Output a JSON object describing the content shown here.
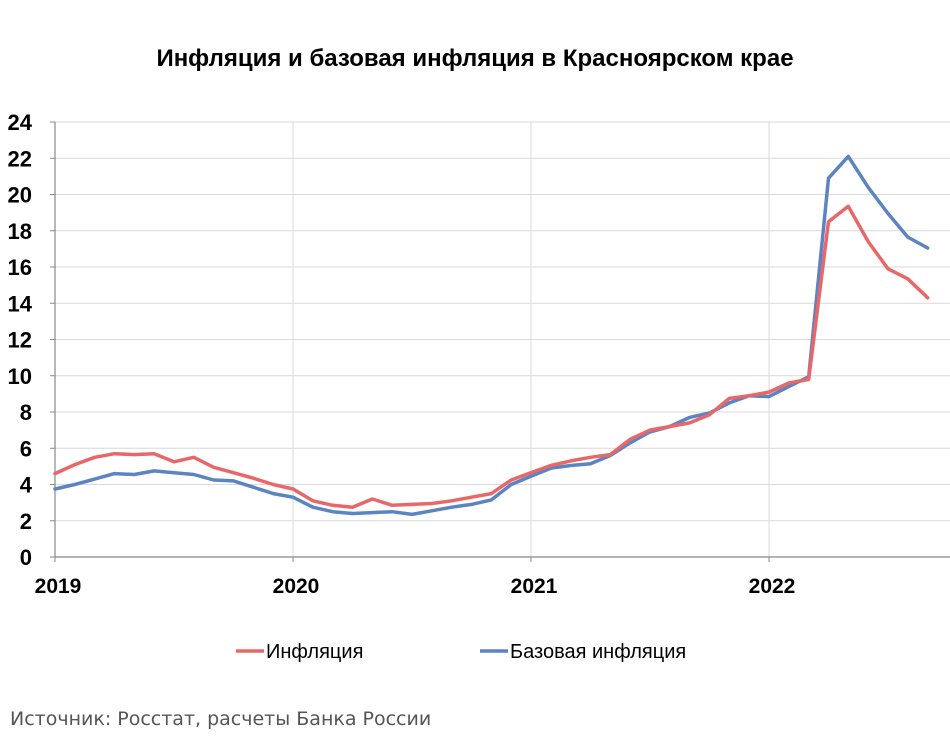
{
  "chart_data": {
    "type": "line",
    "title": "Инфляция и базовая инфляция в Красноярском крае",
    "xlabel": "",
    "ylabel": "",
    "ylim": [
      0,
      24
    ],
    "y_ticks": [
      0,
      2,
      4,
      6,
      8,
      10,
      12,
      14,
      16,
      18,
      20,
      22,
      24
    ],
    "x_tick_labels": [
      "2019",
      "2020",
      "2021",
      "2022"
    ],
    "grid": true,
    "legend_position": "bottom",
    "x": [
      "2019-01",
      "2019-02",
      "2019-03",
      "2019-04",
      "2019-05",
      "2019-06",
      "2019-07",
      "2019-08",
      "2019-09",
      "2019-10",
      "2019-11",
      "2019-12",
      "2020-01",
      "2020-02",
      "2020-03",
      "2020-04",
      "2020-05",
      "2020-06",
      "2020-07",
      "2020-08",
      "2020-09",
      "2020-10",
      "2020-11",
      "2020-12",
      "2021-01",
      "2021-02",
      "2021-03",
      "2021-04",
      "2021-05",
      "2021-06",
      "2021-07",
      "2021-08",
      "2021-09",
      "2021-10",
      "2021-11",
      "2021-12",
      "2022-01",
      "2022-02",
      "2022-03",
      "2022-04",
      "2022-05",
      "2022-06",
      "2022-07",
      "2022-08",
      "2022-09"
    ],
    "series": [
      {
        "name": "Инфляция",
        "color": "#E8686A",
        "values": [
          4.6,
          5.1,
          5.5,
          5.7,
          5.65,
          5.7,
          5.25,
          5.5,
          4.95,
          4.65,
          4.35,
          4.0,
          3.75,
          3.1,
          2.85,
          2.75,
          3.2,
          2.85,
          2.9,
          2.95,
          3.1,
          3.3,
          3.5,
          4.25,
          4.65,
          5.05,
          5.3,
          5.5,
          5.65,
          6.5,
          7.0,
          7.2,
          7.4,
          7.85,
          8.75,
          8.9,
          9.1,
          9.6,
          9.8,
          18.5,
          19.35,
          17.4,
          15.9,
          15.35,
          14.3
        ]
      },
      {
        "name": "Базовая инфляция",
        "color": "#5B84C0",
        "values": [
          3.75,
          4.0,
          4.3,
          4.6,
          4.55,
          4.75,
          4.65,
          4.55,
          4.25,
          4.2,
          3.85,
          3.5,
          3.3,
          2.75,
          2.5,
          2.4,
          2.45,
          2.5,
          2.35,
          2.55,
          2.75,
          2.9,
          3.15,
          4.0,
          4.45,
          4.9,
          5.05,
          5.15,
          5.6,
          6.3,
          6.9,
          7.2,
          7.7,
          7.95,
          8.5,
          8.9,
          8.85,
          9.4,
          9.95,
          20.9,
          22.1,
          20.4,
          18.95,
          17.65,
          17.05
        ]
      }
    ]
  },
  "source_note": "Источник: Росстат, расчеты Банка России"
}
